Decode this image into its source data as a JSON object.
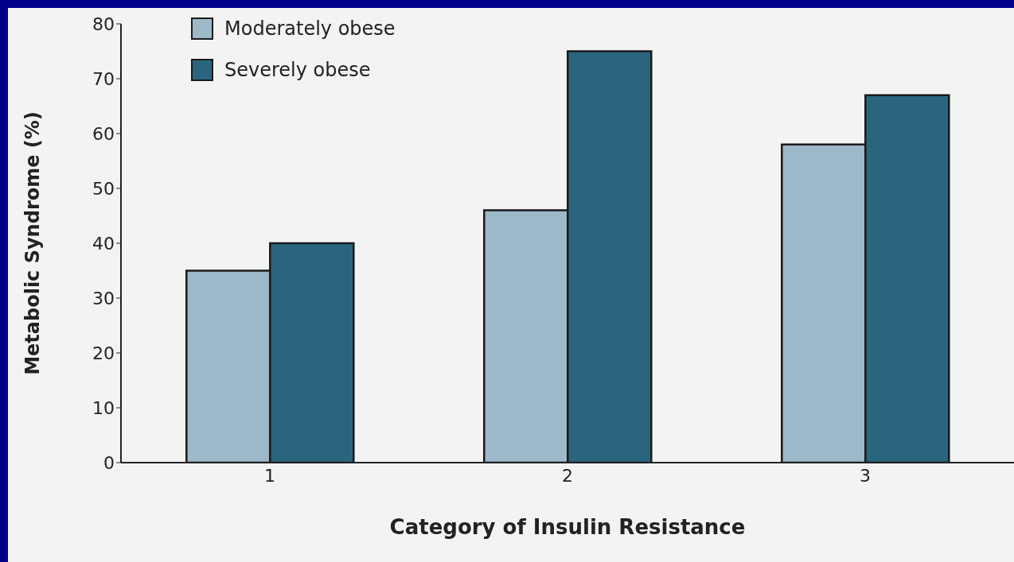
{
  "chart_data": {
    "type": "bar",
    "xlabel": "Category of Insulin Resistance",
    "ylabel": "Metabolic Syndrome (%)",
    "categories": [
      "1",
      "2",
      "3"
    ],
    "series": [
      {
        "name": "Moderately obese",
        "color": "#9db8c9",
        "values": [
          35,
          46,
          58
        ]
      },
      {
        "name": "Severely obese",
        "color": "#29667d",
        "values": [
          40,
          75,
          67
        ]
      }
    ],
    "ylim": [
      0,
      80
    ],
    "yticks": [
      0,
      10,
      20,
      30,
      40,
      50,
      60,
      70,
      80
    ],
    "grid": false,
    "legend": "top left"
  }
}
